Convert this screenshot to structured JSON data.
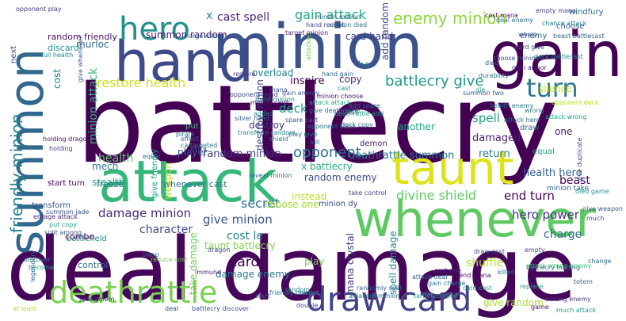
{
  "words": [
    {
      "text": "battlecry",
      "color": "#440154"
    },
    {
      "text": "deal damage",
      "color": "#46075a"
    },
    {
      "text": "minion",
      "color": "#3b528b"
    },
    {
      "text": "hand",
      "color": "#3e4a89"
    },
    {
      "text": "gain",
      "color": "#440154"
    },
    {
      "text": "summon",
      "color": "#31688e"
    },
    {
      "text": "attack",
      "color": "#35b779"
    },
    {
      "text": "taunt",
      "color": "#dde318"
    },
    {
      "text": "whenever",
      "color": "#5ec962"
    },
    {
      "text": "deathrattle",
      "color": "#7ad151"
    },
    {
      "text": "draw card",
      "color": "#414487"
    },
    {
      "text": "hero",
      "color": "#21918c"
    },
    {
      "text": "turn",
      "color": "#2a788e"
    },
    {
      "text": "friendly minion",
      "color": "#26828e"
    },
    {
      "text": "enemy minion",
      "color": "#90d743"
    },
    {
      "text": "gain attack",
      "color": "#22a884"
    },
    {
      "text": "cast spell",
      "color": "#482475"
    },
    {
      "text": "battlecry give",
      "color": "#1f988b"
    },
    {
      "text": "restore health",
      "color": "#cde11d"
    },
    {
      "text": "minion attack",
      "color": "#35b779"
    },
    {
      "text": "damage minion",
      "color": "#472d7b"
    },
    {
      "text": "give minion",
      "color": "#3b528b"
    },
    {
      "text": "random minion",
      "color": "#443983"
    },
    {
      "text": "opponent",
      "color": "#2c728e"
    },
    {
      "text": "secret",
      "color": "#2d708e"
    },
    {
      "text": "character",
      "color": "#3e4989"
    },
    {
      "text": "cost le",
      "color": "#25858e"
    },
    {
      "text": "card",
      "color": "#440154"
    },
    {
      "text": "divine shield",
      "color": "#5ec962"
    },
    {
      "text": "end turn",
      "color": "#440154"
    },
    {
      "text": "hero power",
      "color": "#46327e"
    },
    {
      "text": "deathrattle summon",
      "color": "#2a788e"
    },
    {
      "text": "health",
      "color": "#5ec962"
    },
    {
      "text": "spell",
      "color": "#20a386"
    },
    {
      "text": "damaged",
      "color": "#481f70"
    },
    {
      "text": "charge",
      "color": "#31688e"
    },
    {
      "text": "mana crystal",
      "color": "#443a83"
    },
    {
      "text": "taunt battlecry",
      "color": "#7fd34e"
    },
    {
      "text": "damage enemy",
      "color": "#2a788e"
    },
    {
      "text": "shuffle",
      "color": "#b5de2b"
    },
    {
      "text": "give random",
      "color": "#aadc32"
    },
    {
      "text": "spell damage",
      "color": "#23898e"
    },
    {
      "text": "take damage",
      "color": "#6ece58"
    },
    {
      "text": "destroy minion",
      "color": "#3f4788"
    },
    {
      "text": "destroy",
      "color": "#46337f"
    },
    {
      "text": "deck",
      "color": "#1f9e89"
    },
    {
      "text": "inspire",
      "color": "#440154"
    },
    {
      "text": "overload",
      "color": "#277f8e"
    },
    {
      "text": "copy",
      "color": "#472c7a"
    },
    {
      "text": "return",
      "color": "#297b8e"
    },
    {
      "text": "mech",
      "color": "#2d718e"
    },
    {
      "text": "stealth",
      "color": "#20a486"
    },
    {
      "text": "x battlecry",
      "color": "#29af7f"
    },
    {
      "text": "random enemy",
      "color": "#3f4889"
    },
    {
      "text": "choose one",
      "color": "#a2da37"
    },
    {
      "text": "minion dy",
      "color": "#3d4d8a"
    },
    {
      "text": "give friendly",
      "color": "#1fa088"
    },
    {
      "text": "player",
      "color": "#365c8d"
    },
    {
      "text": "health hero",
      "color": "#34618d"
    },
    {
      "text": "beast",
      "color": "#440154"
    },
    {
      "text": "one",
      "color": "#481b6d"
    },
    {
      "text": "another",
      "color": "#22a884"
    },
    {
      "text": "murloc",
      "color": "#33638d"
    },
    {
      "text": "summon random",
      "color": "#481769"
    },
    {
      "text": "card hand",
      "color": "#414487"
    },
    {
      "text": "add random",
      "color": "#3f4889"
    },
    {
      "text": "enemy",
      "color": "#306a8e"
    },
    {
      "text": "windfury",
      "color": "#31668e"
    },
    {
      "text": "choose",
      "color": "#38588c"
    },
    {
      "text": "silence",
      "color": "#cde11d"
    },
    {
      "text": "draw",
      "color": "#355f8d"
    },
    {
      "text": "battlefield",
      "color": "#21918c"
    },
    {
      "text": "control",
      "color": "#2e6e8e"
    },
    {
      "text": "play",
      "color": "#75d054"
    },
    {
      "text": "freeze",
      "color": "#2a778e"
    },
    {
      "text": "combo",
      "color": "#440154"
    },
    {
      "text": "transform",
      "color": "#3a538b"
    },
    {
      "text": "discard",
      "color": "#1f958b"
    },
    {
      "text": "random friendly",
      "color": "#471164"
    },
    {
      "text": "instead",
      "color": "#bddf26"
    },
    {
      "text": "whenever cast",
      "color": "#2e6d8e"
    },
    {
      "text": "start turn",
      "color": "#440154"
    },
    {
      "text": "cost",
      "color": "#26818e"
    },
    {
      "text": "x",
      "color": "#24868e"
    },
    {
      "text": "ha",
      "color": "#2c728e"
    },
    {
      "text": "next",
      "color": "#3d4e8a"
    },
    {
      "text": "weapon",
      "color": "#b2dd2d"
    },
    {
      "text": "put",
      "color": "#37b878"
    },
    {
      "text": "equal",
      "color": "#1f9a8a"
    },
    {
      "text": "adjacent minion",
      "color": "#2b758e"
    },
    {
      "text": "targeted spell",
      "color": "#1f9f88"
    },
    {
      "text": "jade golem",
      "color": "#46307e"
    },
    {
      "text": "friendly beast",
      "color": "#297a8e"
    },
    {
      "text": "deal",
      "color": "#3b518b"
    },
    {
      "text": "double",
      "color": "#3e4c8a"
    },
    {
      "text": "target",
      "color": "#2f6c8e"
    },
    {
      "text": "at least",
      "color": "#b8de29"
    },
    {
      "text": "among enemy",
      "color": "#46337f"
    },
    {
      "text": "change",
      "color": "#2e6f8e"
    },
    {
      "text": "replace",
      "color": "#21a685"
    },
    {
      "text": "game",
      "color": "#481668"
    },
    {
      "text": "totem",
      "color": "#31678e"
    },
    {
      "text": "much",
      "color": "#39568c"
    },
    {
      "text": "give weapon",
      "color": "#38598c"
    },
    {
      "text": "minion take",
      "color": "#2f6b8e"
    },
    {
      "text": "take control",
      "color": "#404588"
    },
    {
      "text": "demon",
      "color": "#482173"
    },
    {
      "text": "kill",
      "color": "#2a778e"
    },
    {
      "text": "hand recruit",
      "color": "#3f4889"
    },
    {
      "text": "opponent play",
      "color": "#453781"
    },
    {
      "text": "summon two",
      "color": "#375a8c"
    },
    {
      "text": "empty mana",
      "color": "#404688"
    },
    {
      "text": "chance attack",
      "color": "#26828e"
    },
    {
      "text": "attack wrong",
      "color": "#22a785"
    },
    {
      "text": "deck battlecast",
      "color": "#228d8d"
    },
    {
      "text": "durability",
      "color": "#2b748e"
    },
    {
      "text": "died game",
      "color": "#1f968b"
    },
    {
      "text": "summon jade",
      "color": "#3b528b"
    },
    {
      "text": "enrage attack",
      "color": "#482878"
    },
    {
      "text": "put copy",
      "color": "#1fa287"
    },
    {
      "text": "split among",
      "color": "#39558c"
    },
    {
      "text": "holding dragon",
      "color": "#471063"
    },
    {
      "text": "battlecry discover",
      "color": "#3c4f8a"
    },
    {
      "text": "reduce cost",
      "color": "#7ad151"
    },
    {
      "text": "discover",
      "color": "#2c738e"
    },
    {
      "text": "become",
      "color": "#1e9c89"
    },
    {
      "text": "immune",
      "color": "#481a6c"
    },
    {
      "text": "swap",
      "color": "#306a8e"
    },
    {
      "text": "reveal minion",
      "color": "#31688e"
    },
    {
      "text": "silver hand",
      "color": "#32658e"
    },
    {
      "text": "dragon",
      "color": "#3e4a89"
    },
    {
      "text": "pirate",
      "color": "#2b758e"
    },
    {
      "text": "extra",
      "color": "#3d4e8a"
    },
    {
      "text": "died",
      "color": "#34608d"
    },
    {
      "text": "restore",
      "color": "#424186"
    },
    {
      "text": "spend mana",
      "color": "#46085c"
    },
    {
      "text": "randomly split",
      "color": "#33628d"
    },
    {
      "text": "opponent class",
      "color": "#2e6e8e"
    },
    {
      "text": "give whenever",
      "color": "#3a548c"
    },
    {
      "text": "full health",
      "color": "#25848e"
    },
    {
      "text": "minion minion",
      "color": "#2c718e"
    },
    {
      "text": "class",
      "color": "#3d4d8a"
    },
    {
      "text": "attacked",
      "color": "#6ccd5a"
    },
    {
      "text": "gain armor",
      "color": "#482374"
    },
    {
      "text": "equip",
      "color": "#2d708e"
    },
    {
      "text": "beast battlecast",
      "color": "#31678e"
    },
    {
      "text": "choose minion",
      "color": "#3b518b"
    },
    {
      "text": "deck copy",
      "color": "#2d708e"
    },
    {
      "text": "cast",
      "color": "#23898e"
    },
    {
      "text": "opponent deck",
      "color": "#b5de2b"
    },
    {
      "text": "battlecry holding",
      "color": "#375b8d"
    },
    {
      "text": "attack wrong enemy",
      "color": "#38b977"
    },
    {
      "text": "give duplicate",
      "color": "#3d4d8a"
    },
    {
      "text": "empty",
      "color": "#423f85"
    },
    {
      "text": "effect",
      "color": "#2e6d8e"
    },
    {
      "text": "holding",
      "color": "#453882"
    },
    {
      "text": "shield",
      "color": "#2a768e"
    },
    {
      "text": "target minion",
      "color": "#481d6f"
    },
    {
      "text": "ca targeted",
      "color": "#2a788e"
    },
    {
      "text": "minion died",
      "color": "#2c728e"
    },
    {
      "text": "deathrattle add",
      "color": "#1fa187"
    },
    {
      "text": "add spare",
      "color": "#32648e"
    },
    {
      "text": "attack attack",
      "color": "#22a884"
    },
    {
      "text": "gain enemy",
      "color": "#3a548c"
    },
    {
      "text": "minion choose",
      "color": "#481568"
    },
    {
      "text": "give deathrattle",
      "color": "#2d708e"
    },
    {
      "text": "added",
      "color": "#228c8d"
    },
    {
      "text": "opponent hand",
      "color": "#414487"
    },
    {
      "text": "large minion",
      "color": "#2f6c8e"
    },
    {
      "text": "hand minion",
      "color": "#24878e"
    },
    {
      "text": "mana",
      "color": "#3b528b"
    },
    {
      "text": "minion card",
      "color": "#481b6d"
    },
    {
      "text": "spare part",
      "color": "#38588c"
    },
    {
      "text": "play give",
      "color": "#2b748e"
    },
    {
      "text": "transform random",
      "color": "#24868e"
    },
    {
      "text": "legendary",
      "color": "#2e6d8e"
    },
    {
      "text": "much attack",
      "color": "#1f9a8a"
    },
    {
      "text": "whelp",
      "color": "#3a538b"
    },
    {
      "text": "wrong",
      "color": "#2a768e"
    },
    {
      "text": "random",
      "color": "#27808e"
    },
    {
      "text": "start",
      "color": "#3c4f8a"
    },
    {
      "text": "attack hero",
      "color": "#306a8e"
    },
    {
      "text": "cost mana",
      "color": "#440154"
    },
    {
      "text": "deal enemy",
      "color": "#2d708e"
    },
    {
      "text": "card give",
      "color": "#3b528b"
    },
    {
      "text": "die",
      "color": "#1f988b"
    },
    {
      "text": "health enemy",
      "color": "#2a768e"
    },
    {
      "text": "killed",
      "color": "#2c728e"
    },
    {
      "text": "draw cost",
      "color": "#3e4a89"
    },
    {
      "text": "attack deal",
      "color": "#32658e"
    },
    {
      "text": "gain charge",
      "color": "#2b748e"
    },
    {
      "text": "cost one",
      "color": "#482475"
    },
    {
      "text": "card cost",
      "color": "#1fa287"
    },
    {
      "text": "hand gain",
      "color": "#31688e"
    }
  ]
}
